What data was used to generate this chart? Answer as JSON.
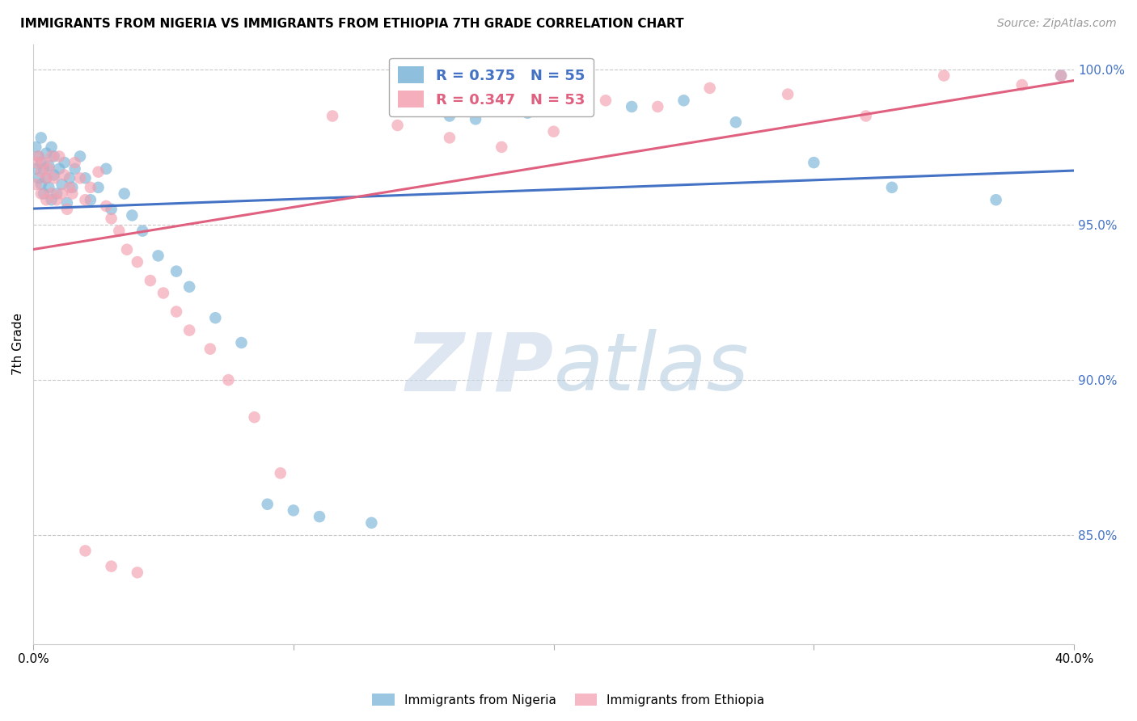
{
  "title": "IMMIGRANTS FROM NIGERIA VS IMMIGRANTS FROM ETHIOPIA 7TH GRADE CORRELATION CHART",
  "source": "Source: ZipAtlas.com",
  "ylabel": "7th Grade",
  "xmin": 0.0,
  "xmax": 0.4,
  "ymin": 0.815,
  "ymax": 1.008,
  "yticks": [
    0.85,
    0.9,
    0.95,
    1.0
  ],
  "ytick_labels": [
    "85.0%",
    "90.0%",
    "95.0%",
    "100.0%"
  ],
  "xticks": [
    0.0,
    0.1,
    0.2,
    0.3,
    0.4
  ],
  "xtick_labels": [
    "0.0%",
    "",
    "",
    "",
    "40.0%"
  ],
  "nigeria_color": "#7ab4d8",
  "ethiopia_color": "#f4a0b0",
  "nigeria_label": "Immigrants from Nigeria",
  "ethiopia_label": "Immigrants from Ethiopia",
  "nigeria_R": 0.375,
  "nigeria_N": 55,
  "ethiopia_R": 0.347,
  "ethiopia_N": 53,
  "nigeria_line_color": "#4472c4",
  "ethiopia_line_color": "#e06080",
  "nigeria_scatter_x": [
    0.001,
    0.001,
    0.002,
    0.002,
    0.003,
    0.003,
    0.003,
    0.004,
    0.004,
    0.005,
    0.005,
    0.006,
    0.006,
    0.007,
    0.007,
    0.008,
    0.008,
    0.009,
    0.01,
    0.011,
    0.012,
    0.013,
    0.014,
    0.015,
    0.016,
    0.018,
    0.02,
    0.022,
    0.025,
    0.028,
    0.03,
    0.035,
    0.038,
    0.042,
    0.048,
    0.055,
    0.06,
    0.07,
    0.08,
    0.09,
    0.1,
    0.11,
    0.13,
    0.15,
    0.16,
    0.17,
    0.19,
    0.21,
    0.23,
    0.25,
    0.27,
    0.3,
    0.33,
    0.37,
    0.395
  ],
  "nigeria_scatter_y": [
    0.975,
    0.968,
    0.972,
    0.965,
    0.97,
    0.963,
    0.978,
    0.968,
    0.96,
    0.973,
    0.965,
    0.969,
    0.962,
    0.975,
    0.958,
    0.966,
    0.972,
    0.96,
    0.968,
    0.963,
    0.97,
    0.957,
    0.965,
    0.962,
    0.968,
    0.972,
    0.965,
    0.958,
    0.962,
    0.968,
    0.955,
    0.96,
    0.953,
    0.948,
    0.94,
    0.935,
    0.93,
    0.92,
    0.912,
    0.86,
    0.858,
    0.856,
    0.854,
    0.987,
    0.985,
    0.984,
    0.986,
    0.994,
    0.988,
    0.99,
    0.983,
    0.97,
    0.962,
    0.958,
    0.998
  ],
  "ethiopia_scatter_x": [
    0.001,
    0.001,
    0.002,
    0.003,
    0.003,
    0.004,
    0.005,
    0.005,
    0.006,
    0.007,
    0.007,
    0.008,
    0.009,
    0.01,
    0.011,
    0.012,
    0.013,
    0.014,
    0.015,
    0.016,
    0.018,
    0.02,
    0.022,
    0.025,
    0.028,
    0.03,
    0.033,
    0.036,
    0.04,
    0.045,
    0.05,
    0.055,
    0.06,
    0.068,
    0.075,
    0.085,
    0.095,
    0.115,
    0.14,
    0.16,
    0.18,
    0.2,
    0.22,
    0.24,
    0.26,
    0.29,
    0.32,
    0.35,
    0.02,
    0.03,
    0.04,
    0.395,
    0.38
  ],
  "ethiopia_scatter_y": [
    0.97,
    0.963,
    0.972,
    0.967,
    0.96,
    0.97,
    0.965,
    0.958,
    0.968,
    0.972,
    0.96,
    0.965,
    0.958,
    0.972,
    0.96,
    0.966,
    0.955,
    0.962,
    0.96,
    0.97,
    0.965,
    0.958,
    0.962,
    0.967,
    0.956,
    0.952,
    0.948,
    0.942,
    0.938,
    0.932,
    0.928,
    0.922,
    0.916,
    0.91,
    0.9,
    0.888,
    0.87,
    0.985,
    0.982,
    0.978,
    0.975,
    0.98,
    0.99,
    0.988,
    0.994,
    0.992,
    0.985,
    0.998,
    0.845,
    0.84,
    0.838,
    0.998,
    0.995
  ],
  "watermark_zip": "ZIP",
  "watermark_atlas": "atlas",
  "background_color": "#ffffff",
  "grid_color": "#c8c8c8"
}
